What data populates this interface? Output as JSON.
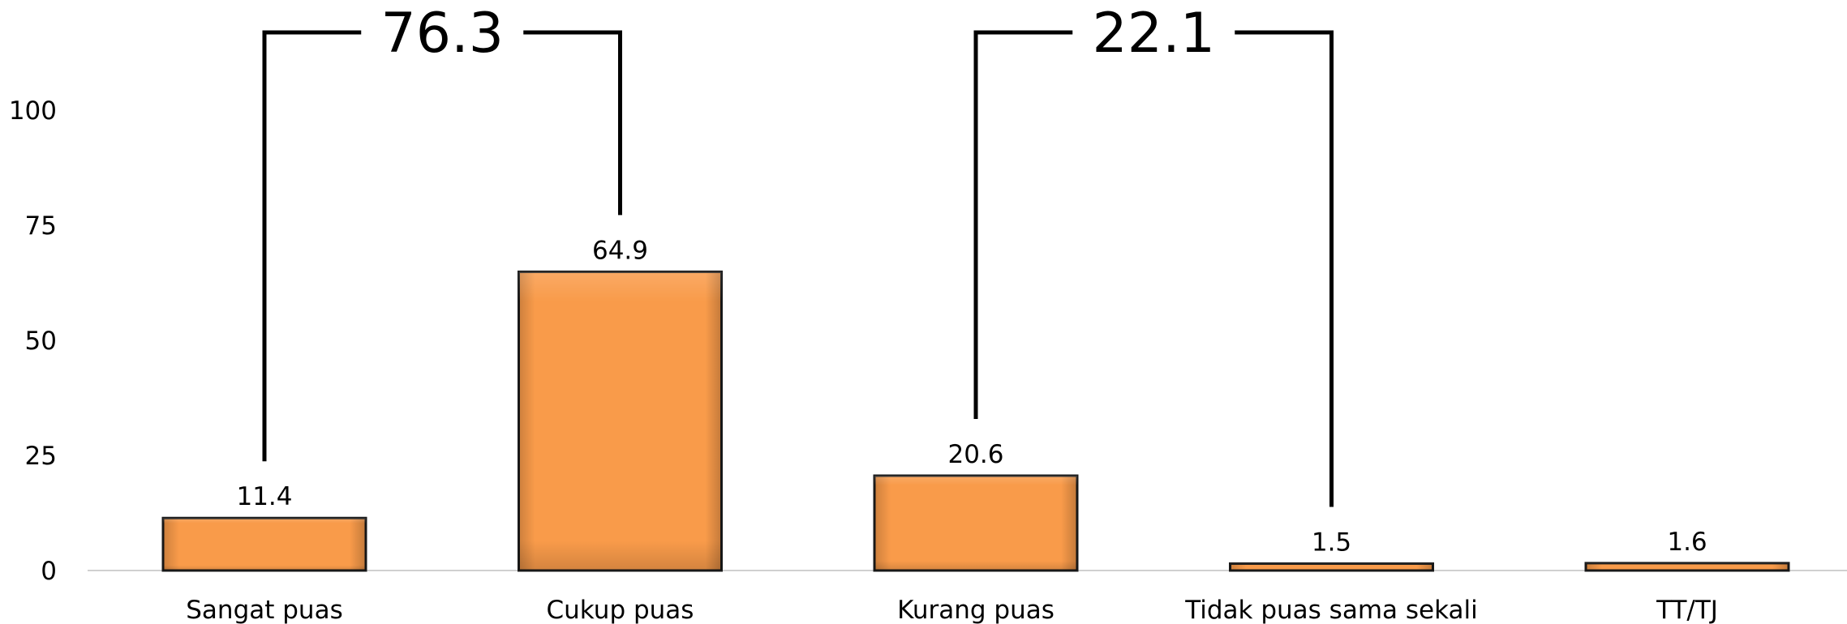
{
  "chart_data": {
    "type": "bar",
    "categories": [
      "Sangat puas",
      "Cukup puas",
      "Kurang puas",
      "Tidak puas sama sekali",
      "TT/TJ"
    ],
    "values": [
      11.4,
      64.9,
      20.6,
      1.5,
      1.6
    ],
    "value_labels": [
      "11.4",
      "64.9",
      "20.6",
      "1.5",
      "1.6"
    ],
    "yticks": [
      0,
      25,
      50,
      75,
      100
    ],
    "ylim": [
      0,
      120
    ],
    "grid": false,
    "bar_color": "#f99b4a",
    "groups": [
      {
        "label": "76.3",
        "from": 0,
        "to": 1
      },
      {
        "label": "22.1",
        "from": 2,
        "to": 3
      }
    ]
  }
}
